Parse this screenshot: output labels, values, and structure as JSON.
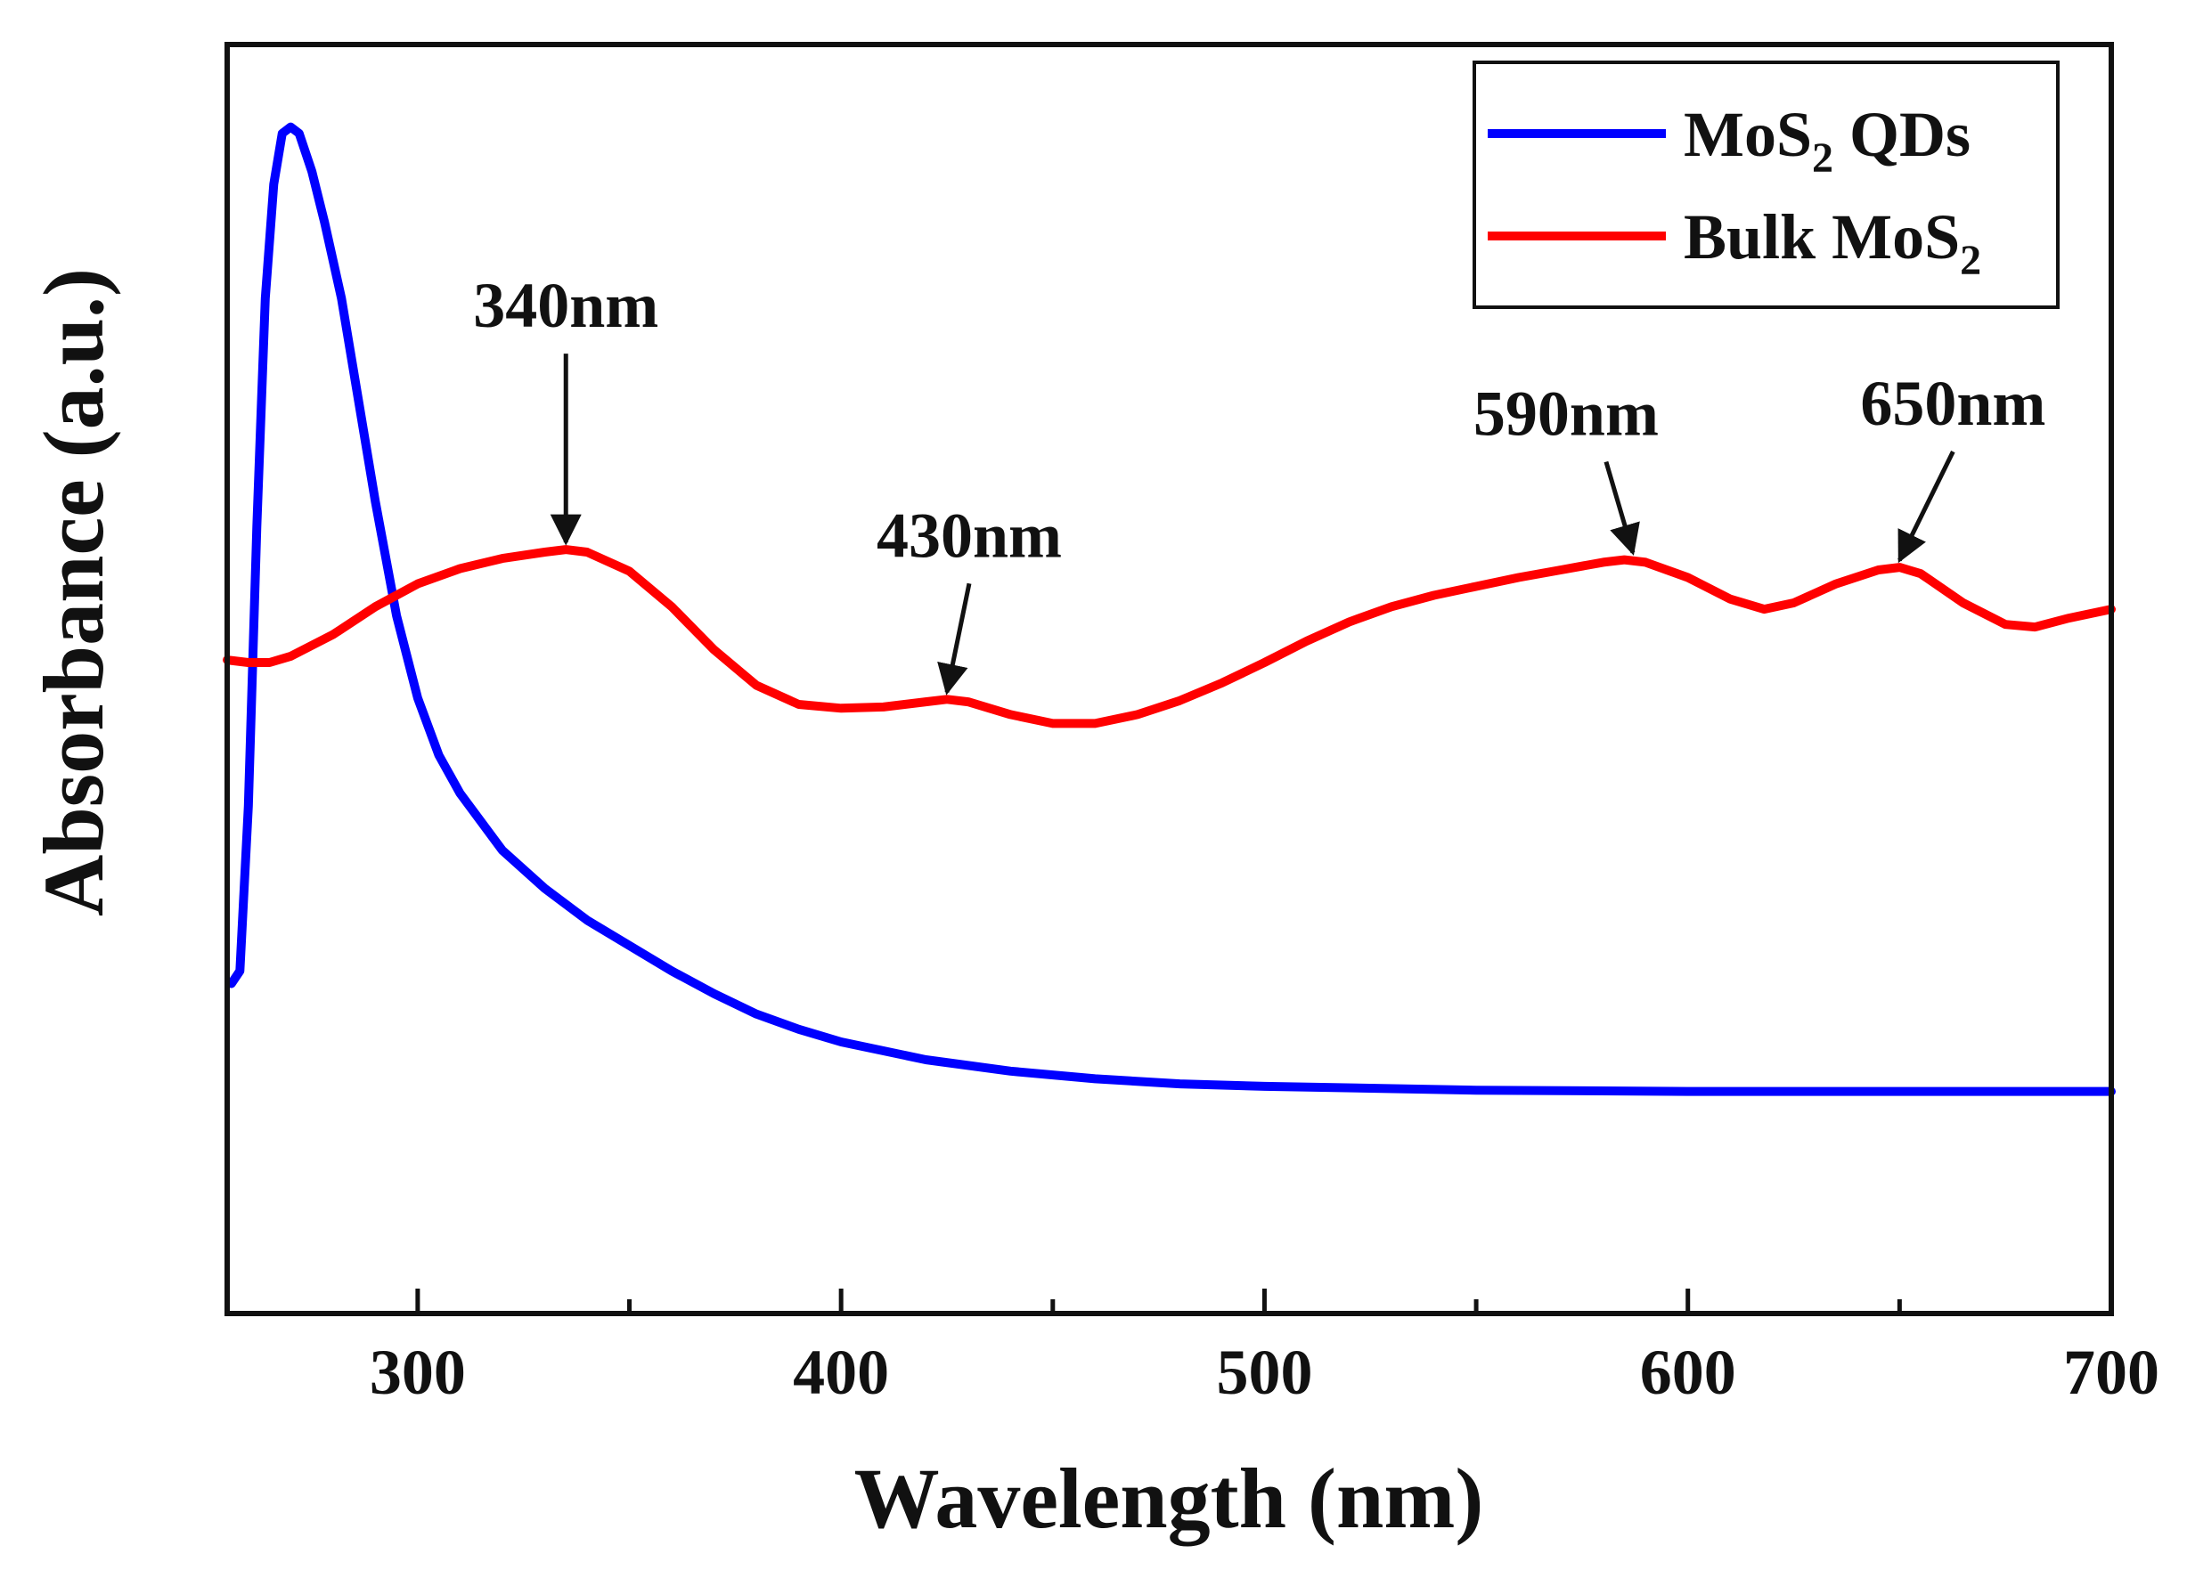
{
  "chart_data": {
    "type": "line",
    "xlabel": "Wavelength (nm)",
    "ylabel": "Absorbance (a.u.)",
    "xlim": [
      255,
      700
    ],
    "ylim": [
      0,
      1
    ],
    "y_tick_labels": false,
    "x_ticks": [
      300,
      400,
      500,
      600,
      700
    ],
    "x_minor_ticks": [
      350,
      450,
      550,
      650
    ],
    "grid": false,
    "legend_position": "top-right",
    "legend": [
      {
        "text": "MoS",
        "sub": "2",
        "tail": " QDs",
        "color": "#0000ff"
      },
      {
        "text": "Bulk MoS",
        "sub": "2",
        "tail": "",
        "color": "#ff0000"
      }
    ],
    "series": [
      {
        "name": "MoS2 QDs",
        "color": "#0000ff",
        "points": [
          [
            256,
            0.26
          ],
          [
            258,
            0.27
          ],
          [
            260,
            0.4
          ],
          [
            262,
            0.62
          ],
          [
            264,
            0.8
          ],
          [
            266,
            0.89
          ],
          [
            268,
            0.93
          ],
          [
            270,
            0.935
          ],
          [
            272,
            0.93
          ],
          [
            275,
            0.9
          ],
          [
            278,
            0.86
          ],
          [
            282,
            0.8
          ],
          [
            286,
            0.72
          ],
          [
            290,
            0.64
          ],
          [
            295,
            0.55
          ],
          [
            300,
            0.485
          ],
          [
            305,
            0.44
          ],
          [
            310,
            0.41
          ],
          [
            320,
            0.365
          ],
          [
            330,
            0.335
          ],
          [
            340,
            0.31
          ],
          [
            350,
            0.29
          ],
          [
            360,
            0.27
          ],
          [
            370,
            0.252
          ],
          [
            380,
            0.236
          ],
          [
            390,
            0.224
          ],
          [
            400,
            0.214
          ],
          [
            420,
            0.2
          ],
          [
            440,
            0.191
          ],
          [
            460,
            0.185
          ],
          [
            480,
            0.181
          ],
          [
            500,
            0.179
          ],
          [
            550,
            0.176
          ],
          [
            600,
            0.175
          ],
          [
            650,
            0.175
          ],
          [
            700,
            0.175
          ]
        ]
      },
      {
        "name": "Bulk MoS2",
        "color": "#ff0000",
        "points": [
          [
            255,
            0.515
          ],
          [
            260,
            0.513
          ],
          [
            265,
            0.513
          ],
          [
            270,
            0.518
          ],
          [
            280,
            0.535
          ],
          [
            290,
            0.557
          ],
          [
            300,
            0.575
          ],
          [
            310,
            0.587
          ],
          [
            320,
            0.595
          ],
          [
            330,
            0.6
          ],
          [
            335,
            0.602
          ],
          [
            340,
            0.6
          ],
          [
            350,
            0.585
          ],
          [
            360,
            0.557
          ],
          [
            370,
            0.523
          ],
          [
            380,
            0.495
          ],
          [
            390,
            0.48
          ],
          [
            400,
            0.477
          ],
          [
            410,
            0.478
          ],
          [
            420,
            0.482
          ],
          [
            425,
            0.484
          ],
          [
            430,
            0.482
          ],
          [
            440,
            0.472
          ],
          [
            450,
            0.465
          ],
          [
            460,
            0.465
          ],
          [
            470,
            0.472
          ],
          [
            480,
            0.483
          ],
          [
            490,
            0.497
          ],
          [
            500,
            0.513
          ],
          [
            510,
            0.53
          ],
          [
            520,
            0.545
          ],
          [
            530,
            0.557
          ],
          [
            540,
            0.566
          ],
          [
            550,
            0.573
          ],
          [
            560,
            0.58
          ],
          [
            570,
            0.586
          ],
          [
            580,
            0.592
          ],
          [
            585,
            0.594
          ],
          [
            590,
            0.592
          ],
          [
            600,
            0.58
          ],
          [
            610,
            0.563
          ],
          [
            618,
            0.555
          ],
          [
            625,
            0.56
          ],
          [
            635,
            0.575
          ],
          [
            645,
            0.586
          ],
          [
            650,
            0.588
          ],
          [
            655,
            0.583
          ],
          [
            665,
            0.56
          ],
          [
            675,
            0.543
          ],
          [
            682,
            0.541
          ],
          [
            690,
            0.548
          ],
          [
            700,
            0.555
          ]
        ]
      }
    ],
    "annotations": [
      {
        "text": "340nm",
        "x": 335,
        "y": 0.602
      },
      {
        "text": "430nm",
        "x": 425,
        "y": 0.484
      },
      {
        "text": "590nm",
        "x": 587,
        "y": 0.594
      },
      {
        "text": "650nm",
        "x": 650,
        "y": 0.588
      }
    ]
  }
}
